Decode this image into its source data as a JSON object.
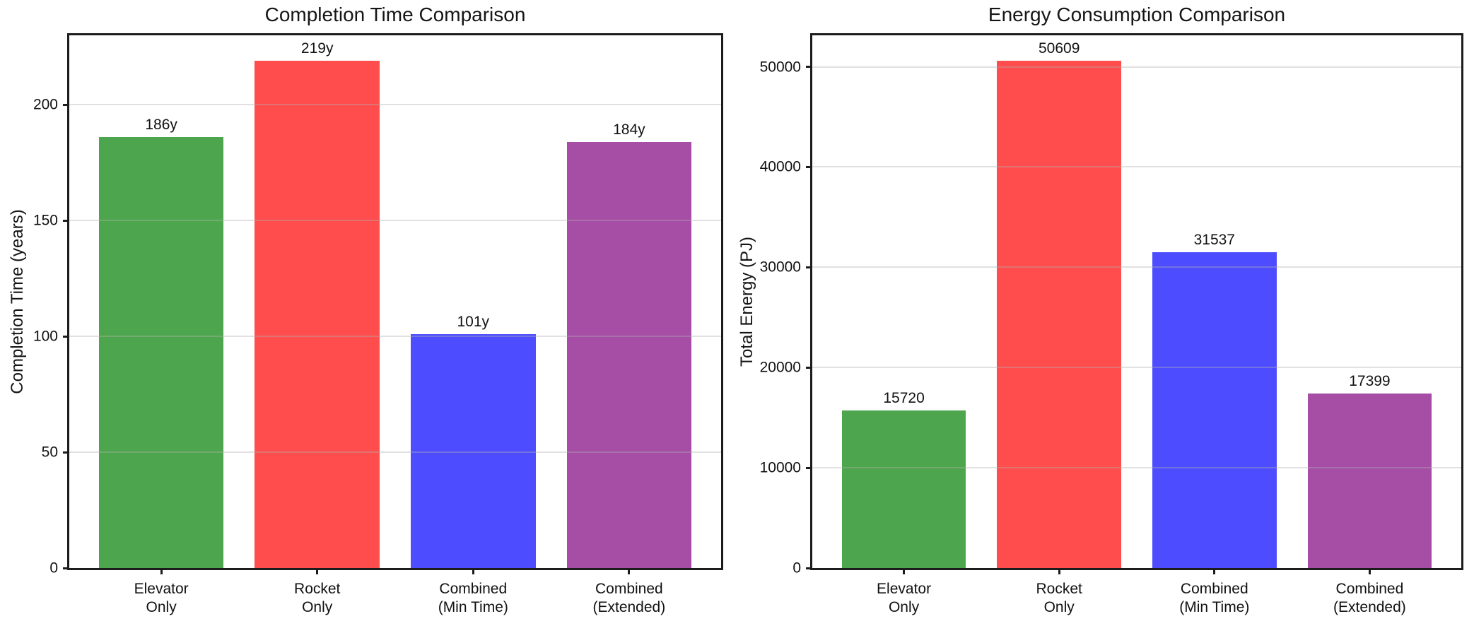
{
  "figure": {
    "background": "#ffffff",
    "spine_color": "#1c1c1c",
    "grid_color": "#b0b0b0"
  },
  "chart_data": [
    {
      "type": "bar",
      "title": "Completion Time Comparison",
      "ylabel": "Completion Time (years)",
      "xlabel": "",
      "categories": [
        "Elevator\nOnly",
        "Rocket\nOnly",
        "Combined\n(Min Time)",
        "Combined\n(Extended)"
      ],
      "values": [
        186,
        219,
        101,
        184
      ],
      "value_labels": [
        "186y",
        "219y",
        "101y",
        "184y"
      ],
      "bar_colors": [
        "#4da64d",
        "#ff4d4d",
        "#4d4dff",
        "#a64da6"
      ],
      "ylim": [
        0,
        230
      ],
      "yticks": [
        0,
        50,
        100,
        150,
        200
      ],
      "grid": true,
      "legend": false
    },
    {
      "type": "bar",
      "title": "Energy Consumption Comparison",
      "ylabel": "Total Energy (PJ)",
      "xlabel": "",
      "categories": [
        "Elevator\nOnly",
        "Rocket\nOnly",
        "Combined\n(Min Time)",
        "Combined\n(Extended)"
      ],
      "values": [
        15720,
        50609,
        31537,
        17399
      ],
      "value_labels": [
        "15720",
        "50609",
        "31537",
        "17399"
      ],
      "bar_colors": [
        "#4da64d",
        "#ff4d4d",
        "#4d4dff",
        "#a64da6"
      ],
      "ylim": [
        0,
        53140
      ],
      "yticks": [
        0,
        10000,
        20000,
        30000,
        40000,
        50000
      ],
      "grid": true,
      "legend": false
    }
  ]
}
